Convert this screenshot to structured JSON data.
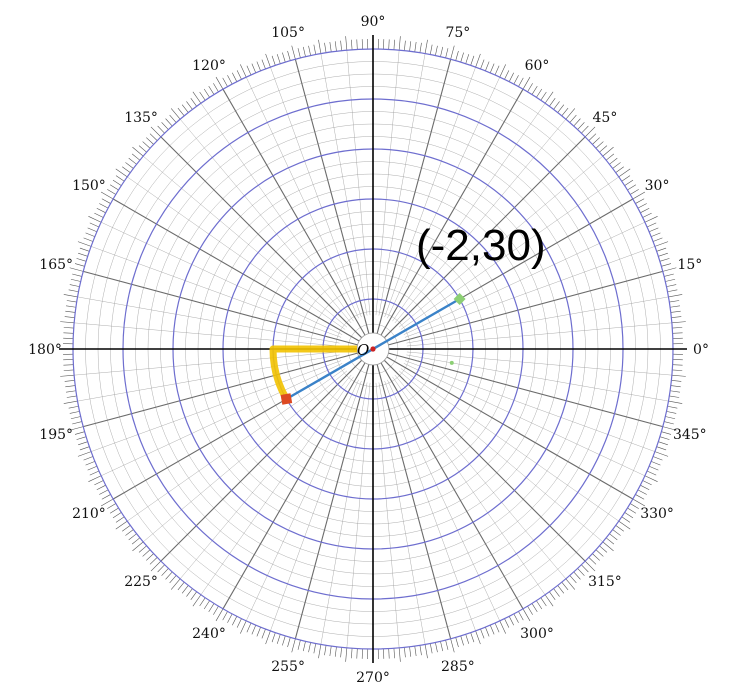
{
  "diagram": {
    "type": "polar-grid",
    "ring_count": 6,
    "angle_labels": [
      "0°",
      "15°",
      "30°",
      "45°",
      "60°",
      "75°",
      "90°",
      "105°",
      "120°",
      "135°",
      "150°",
      "165°",
      "180°",
      "195°",
      "210°",
      "225°",
      "240°",
      "255°",
      "270°",
      "285°",
      "300°",
      "315°",
      "330°",
      "345°"
    ],
    "origin_label": "O",
    "point_label": "(-2,30)",
    "point": {
      "r": -2,
      "theta_deg": 30
    },
    "colors": {
      "ring_major": "#6e6ecf",
      "grid_minor": "#9a9a9a",
      "spoke_major": "#6b6b6b",
      "axis": "#000000",
      "ray": "#3a82c8",
      "highlight_path": "#f2c200",
      "marker_start": "#dd4a22",
      "marker_end": "#8ccf74",
      "origin_dot": "#cc2222"
    }
  }
}
